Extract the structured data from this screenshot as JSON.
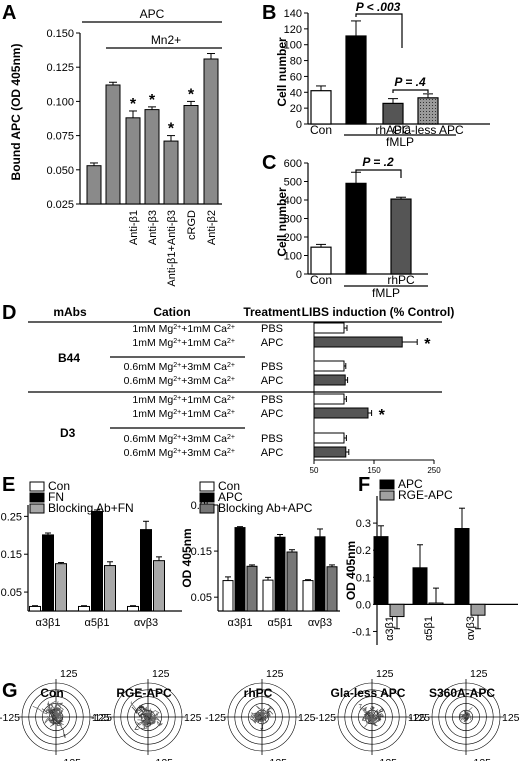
{
  "panels": {
    "A": {
      "label": "A",
      "chart_data": {
        "type": "bar",
        "ylabel": "Bound APC (OD 405nm)",
        "ylim": [
          0.025,
          0.15
        ],
        "yticks": [
          "0.150",
          "0.125",
          "0.100",
          "0.075",
          "0.050",
          "0.025"
        ],
        "ytick_values": [
          0.15,
          0.125,
          0.1,
          0.075,
          0.05,
          0.025
        ],
        "categories": [
          "",
          "",
          "Anti-β1",
          "Anti-β3",
          "Anti-β1+Anti-β3",
          "cRGD",
          "Anti-β2"
        ],
        "values": [
          0.053,
          0.112,
          0.088,
          0.094,
          0.071,
          0.097,
          0.131
        ],
        "errors": [
          0.002,
          0.002,
          0.005,
          0.002,
          0.004,
          0.003,
          0.004
        ],
        "significant": [
          "",
          "",
          "*",
          "*",
          "*",
          "*",
          ""
        ],
        "bracket_apc": "APC",
        "bracket_mn": "Mn2+",
        "bar_color": "#8a8a8a"
      }
    },
    "B": {
      "label": "B",
      "chart_data": {
        "type": "bar",
        "ylabel": "Cell number",
        "ylim": [
          0,
          140
        ],
        "yticks": [
          "0",
          "20",
          "40",
          "60",
          "80",
          "100",
          "120",
          "140"
        ],
        "ytick_values": [
          0,
          20,
          40,
          60,
          80,
          100,
          120,
          140
        ],
        "categories": [
          "Con",
          "",
          "rhAPC",
          "Gla-less APC"
        ],
        "values": [
          42,
          111,
          26,
          33
        ],
        "errors": [
          6,
          19,
          6,
          5
        ],
        "group_label": "fMLP",
        "annotations": [
          "P < .003",
          "P = .4"
        ]
      }
    },
    "C": {
      "label": "C",
      "chart_data": {
        "type": "bar",
        "ylabel": "Cell number",
        "ylim": [
          0,
          600
        ],
        "yticks": [
          "0",
          "100",
          "200",
          "300",
          "400",
          "500",
          "600"
        ],
        "ytick_values": [
          0,
          100,
          200,
          300,
          400,
          500,
          600
        ],
        "categories": [
          "Con",
          "",
          "rhPC"
        ],
        "values": [
          145,
          490,
          405
        ],
        "errors": [
          15,
          60,
          10
        ],
        "group_label": "fMLP",
        "annotations": [
          "P = .2"
        ]
      }
    },
    "D": {
      "label": "D",
      "headers": [
        "mAbs",
        "Cation",
        "Treatment",
        "LIBS induction (% Control)"
      ],
      "groups": [
        "B44",
        "D3"
      ],
      "cation_high": "1mM Mg2++1mM Ca2+",
      "cation_low": "0.6mM Mg2++3mM Ca2+",
      "treatments": [
        "PBS",
        "APC"
      ],
      "xticks": [
        "50",
        "150",
        "250"
      ],
      "xtick_values": [
        50,
        150,
        250
      ],
      "chart_data": {
        "type": "bar",
        "xlim": [
          50,
          250
        ],
        "rows": [
          {
            "group": "B44",
            "cation": "high",
            "treatment": "PBS",
            "value": 100,
            "error": 5,
            "sig": ""
          },
          {
            "group": "B44",
            "cation": "high",
            "treatment": "APC",
            "value": 197,
            "error": 25,
            "sig": "*"
          },
          {
            "group": "B44",
            "cation": "low",
            "treatment": "PBS",
            "value": 100,
            "error": 3,
            "sig": ""
          },
          {
            "group": "B44",
            "cation": "low",
            "treatment": "APC",
            "value": 102,
            "error": 4,
            "sig": ""
          },
          {
            "group": "D3",
            "cation": "high",
            "treatment": "PBS",
            "value": 100,
            "error": 4,
            "sig": ""
          },
          {
            "group": "D3",
            "cation": "high",
            "treatment": "APC",
            "value": 140,
            "error": 6,
            "sig": "*"
          },
          {
            "group": "D3",
            "cation": "low",
            "treatment": "PBS",
            "value": 100,
            "error": 4,
            "sig": ""
          },
          {
            "group": "D3",
            "cation": "low",
            "treatment": "APC",
            "value": 103,
            "error": 5,
            "sig": ""
          }
        ]
      }
    },
    "E": {
      "label": "E",
      "charts": [
        {
          "type": "bar",
          "ylabel": "OD 405nm",
          "ylim": [
            0,
            0.28
          ],
          "yticks": [
            "0.05",
            "0.15",
            "0.25"
          ],
          "ytick_values": [
            0.05,
            0.15,
            0.25
          ],
          "categories": [
            "α3β1",
            "α5β1",
            "αvβ3"
          ],
          "series": [
            {
              "name": "Con",
              "color": "#ffffff",
              "values": [
                0.012,
                0.012,
                0.012
              ],
              "errors": [
                0.002,
                0.002,
                0.002
              ]
            },
            {
              "name": "FN",
              "color": "#000000",
              "values": [
                0.201,
                0.263,
                0.215
              ],
              "errors": [
                0.005,
                0.004,
                0.022
              ]
            },
            {
              "name": "Blocking Ab+FN",
              "color": "#a8a8a8",
              "values": [
                0.125,
                0.12,
                0.133
              ],
              "errors": [
                0.003,
                0.01,
                0.01
              ]
            }
          ]
        },
        {
          "type": "bar",
          "ylabel": "OD 405nm",
          "ylim": [
            0.02,
            0.25
          ],
          "yticks": [
            "0.05",
            "0.15",
            "0.25"
          ],
          "ytick_values": [
            0.05,
            0.15,
            0.25
          ],
          "categories": [
            "α3β1",
            "α5β1",
            "αvβ3"
          ],
          "series": [
            {
              "name": "Con",
              "color": "#ffffff",
              "values": [
                0.086,
                0.087,
                0.086
              ],
              "errors": [
                0.008,
                0.006,
                0.002
              ]
            },
            {
              "name": "APC",
              "color": "#000000",
              "values": [
                0.201,
                0.18,
                0.181
              ],
              "errors": [
                0.002,
                0.006,
                0.017
              ]
            },
            {
              "name": "Blocking Ab+APC",
              "color": "#777777",
              "values": [
                0.117,
                0.148,
                0.116
              ],
              "errors": [
                0.003,
                0.005,
                0.004
              ]
            }
          ]
        }
      ]
    },
    "F": {
      "label": "F",
      "chart_data": {
        "type": "bar",
        "ylabel": "OD 405nm",
        "ylim": [
          -0.15,
          0.4
        ],
        "yticks": [
          "0.3",
          "0.2",
          "0.1",
          "0.0",
          "-0.1"
        ],
        "ytick_values": [
          0.3,
          0.2,
          0.1,
          0.0,
          -0.1
        ],
        "categories": [
          "α3β1",
          "α5β1",
          "αvβ3"
        ],
        "series": [
          {
            "name": "APC",
            "color": "#000000",
            "values": [
              0.25,
              0.135,
              0.28
            ],
            "errors": [
              0.04,
              0.085,
              0.075
            ]
          },
          {
            "name": "RGE-APC",
            "color": "#a0a0a0",
            "values": [
              -0.045,
              0.005,
              -0.04
            ],
            "errors": [
              0.045,
              0.055,
              0.05
            ]
          }
        ]
      }
    },
    "G": {
      "label": "G",
      "axis_label_pos": "125",
      "axis_label_neg": "-125",
      "plots": [
        {
          "title": "Con",
          "spread": 1.0
        },
        {
          "title": "RGE-APC",
          "spread": 0.95
        },
        {
          "title": "rhPC",
          "spread": 0.8
        },
        {
          "title": "Gla-less APC",
          "spread": 0.75
        },
        {
          "title": "S360A-APC",
          "spread": 0.4
        }
      ]
    }
  }
}
